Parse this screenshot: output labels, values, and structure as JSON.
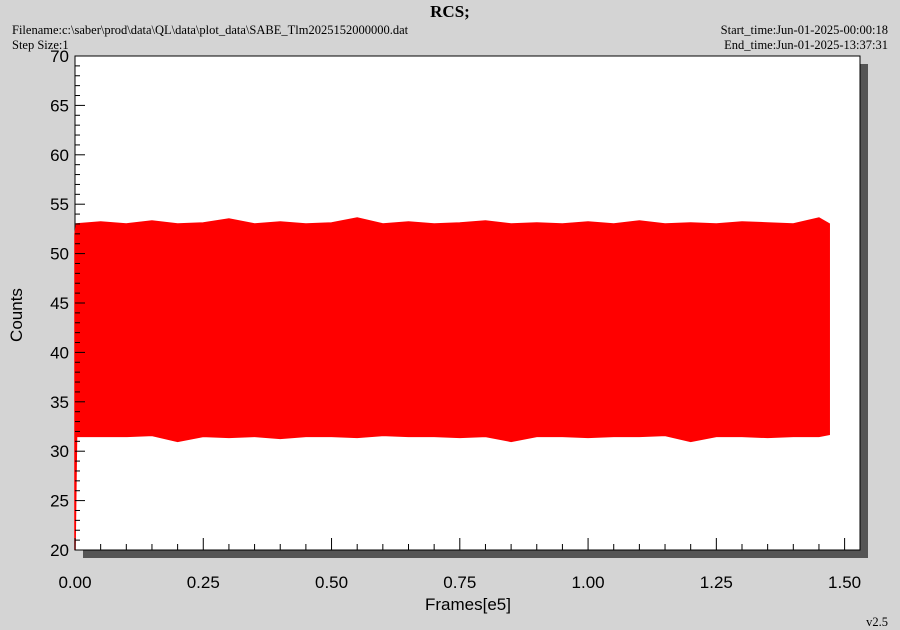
{
  "chart_data": {
    "type": "range",
    "title": "RCS;",
    "filename": "Filename:c:\\saber\\prod\\data\\QL\\data\\plot_data\\SABE_Tlm2025152000000.dat",
    "step_size": "Step Size:1",
    "start_time": "Start_time:Jun-01-2025-00:00:18",
    "end_time": "End_time:Jun-01-2025-13:37:31",
    "version": "v2.5",
    "xlabel": "Frames[e5]",
    "ylabel": "Counts",
    "xlim": [
      0,
      1.53
    ],
    "ylim": [
      20,
      70
    ],
    "xticks": [
      {
        "value": 0,
        "label": "0.00"
      },
      {
        "value": 0.25,
        "label": "0.25"
      },
      {
        "value": 0.5,
        "label": "0.50"
      },
      {
        "value": 0.75,
        "label": "0.75"
      },
      {
        "value": 1,
        "label": "1.00"
      },
      {
        "value": 1.25,
        "label": "1.25"
      },
      {
        "value": 1.5,
        "label": "1.50"
      }
    ],
    "yticks": [
      20,
      25,
      30,
      35,
      40,
      45,
      50,
      55,
      60,
      65,
      70
    ],
    "x": [
      0,
      0.003,
      0.05,
      0.1,
      0.15,
      0.2,
      0.25,
      0.3,
      0.35,
      0.4,
      0.45,
      0.5,
      0.55,
      0.6,
      0.65,
      0.7,
      0.75,
      0.8,
      0.85,
      0.9,
      0.95,
      1.0,
      1.05,
      1.1,
      1.15,
      1.2,
      1.25,
      1.3,
      1.35,
      1.4,
      1.45,
      1.47
    ],
    "series": [
      {
        "color": "#ff0000",
        "high": [
          52,
          53,
          53.2,
          53,
          53.3,
          53,
          53.1,
          53.5,
          53,
          53.2,
          53,
          53.1,
          53.6,
          53,
          53.2,
          53,
          53.1,
          53.3,
          53,
          53.1,
          53,
          53.2,
          53,
          53.3,
          53,
          53.1,
          53,
          53.2,
          53.1,
          53,
          53.6,
          53
        ],
        "low": [
          20,
          31.5,
          31.5,
          31.5,
          31.6,
          31,
          31.5,
          31.4,
          31.5,
          31.3,
          31.5,
          31.5,
          31.4,
          31.6,
          31.5,
          31.5,
          31.4,
          31.5,
          31,
          31.5,
          31.5,
          31.4,
          31.5,
          31.5,
          31.6,
          31,
          31.5,
          31.5,
          31.4,
          31.5,
          31.5,
          31.7
        ]
      }
    ]
  }
}
